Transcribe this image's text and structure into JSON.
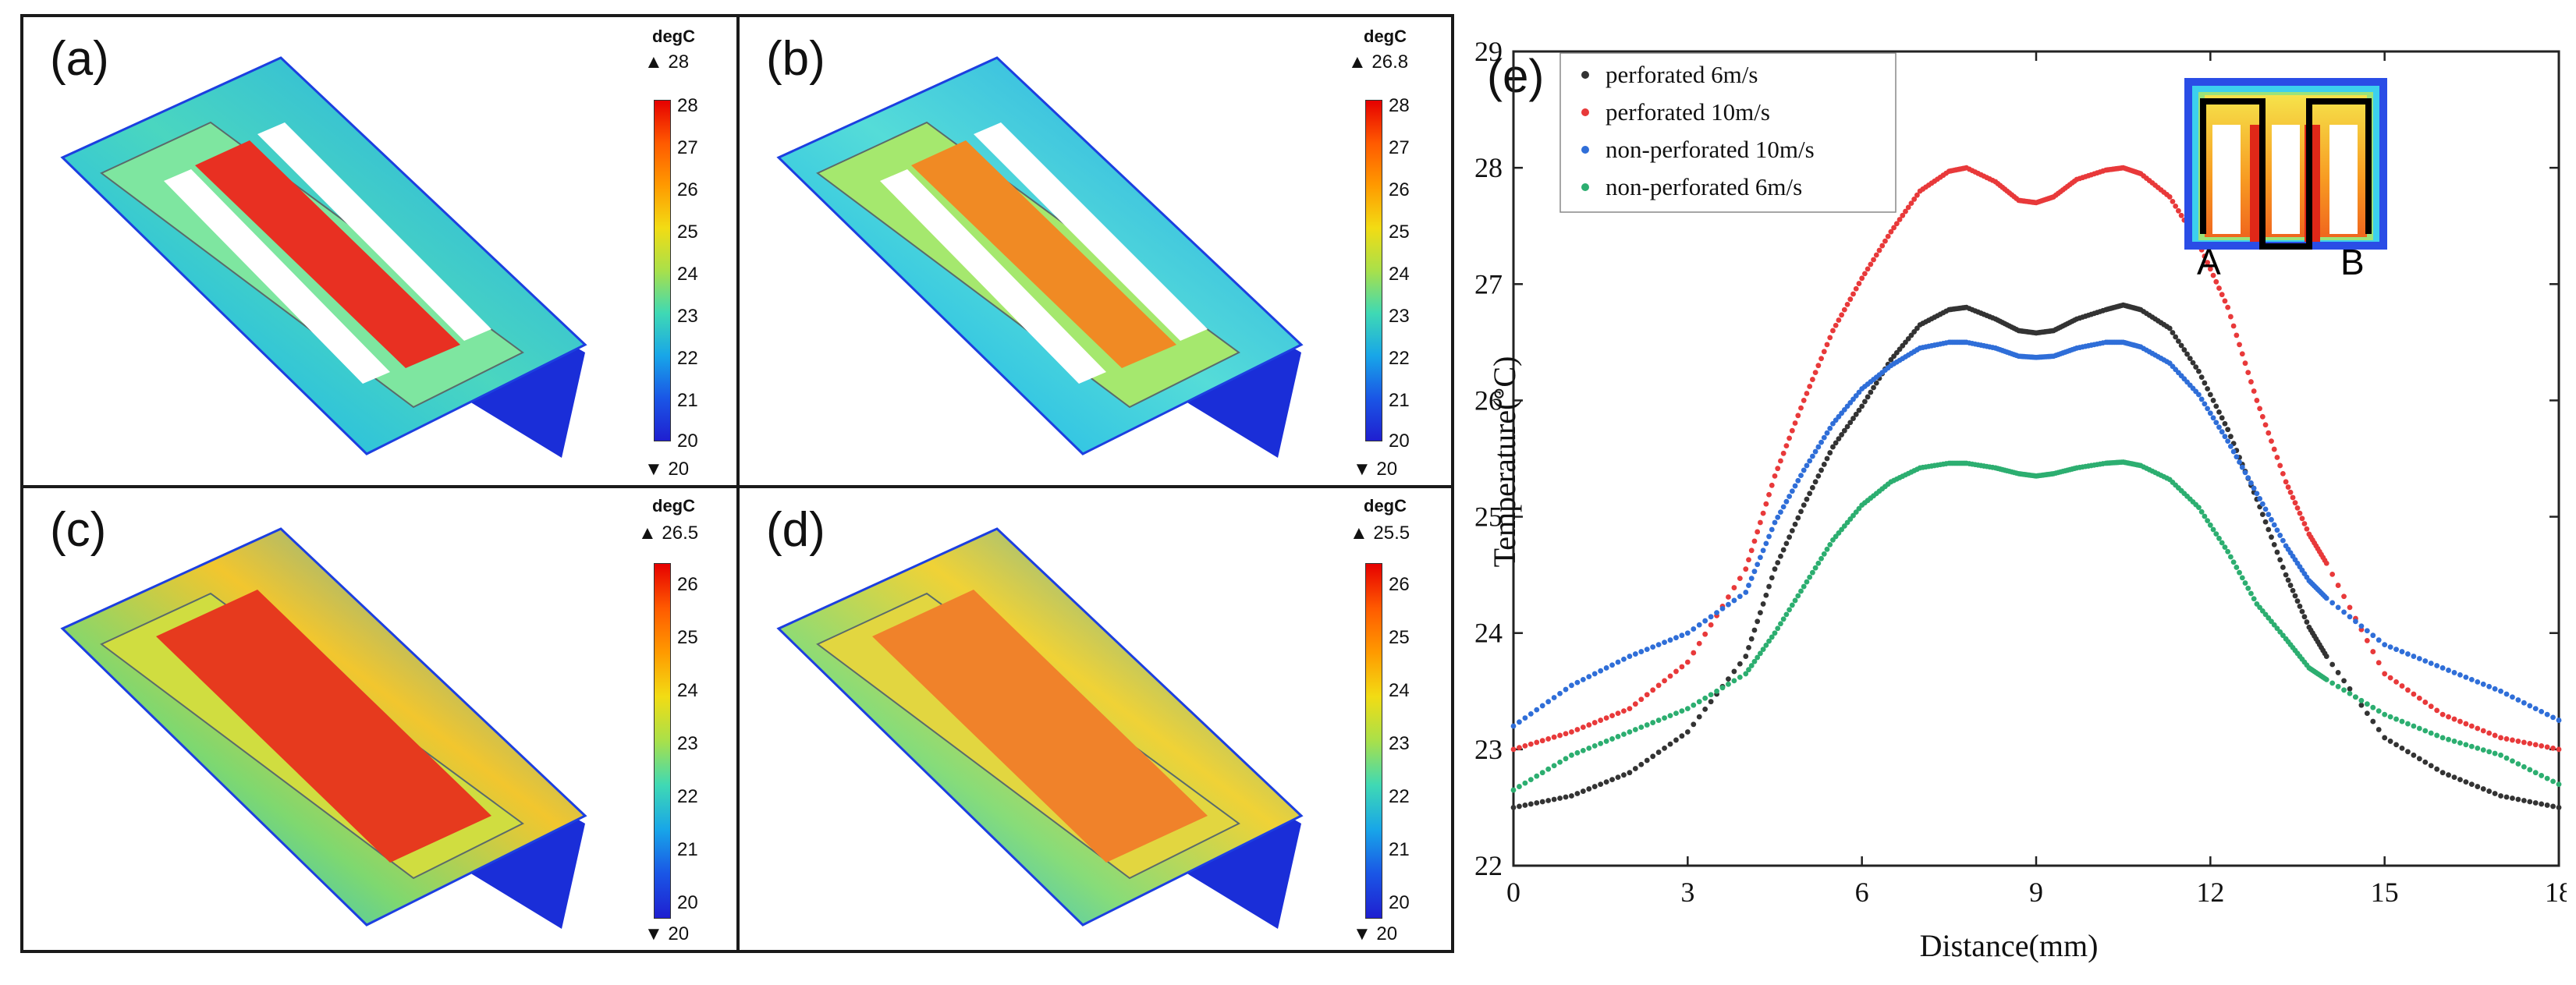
{
  "panels": [
    {
      "label": "(a)",
      "unit": "degC",
      "max_label": "▲ 28",
      "min_label": "▼ 20",
      "ticks": [
        "28",
        "27",
        "26",
        "25",
        "24",
        "23",
        "22",
        "21",
        "20"
      ],
      "state": "perforated_hot"
    },
    {
      "label": "(b)",
      "unit": "degC",
      "max_label": "▲ 26.8",
      "min_label": "▼ 20",
      "ticks": [
        "28",
        "27",
        "26",
        "25",
        "24",
        "23",
        "22",
        "21",
        "20"
      ],
      "state": "perforated_warm"
    },
    {
      "label": "(c)",
      "unit": "degC",
      "max_label": "▲ 26.5",
      "min_label": "▼ 20",
      "ticks": [
        "26",
        "25",
        "24",
        "23",
        "22",
        "21",
        "20"
      ],
      "state": "solid_hot"
    },
    {
      "label": "(d)",
      "unit": "degC",
      "max_label": "▲ 25.5",
      "min_label": "▼ 20",
      "ticks": [
        "26",
        "25",
        "24",
        "23",
        "22",
        "21",
        "20"
      ],
      "state": "solid_warm"
    }
  ],
  "chart_data": {
    "type": "scatter",
    "panel_label": "(e)",
    "xlabel": "Distance(mm)",
    "ylabel": "Temperature(°C)",
    "xlim": [
      0,
      18
    ],
    "ylim": [
      22,
      29
    ],
    "xticks": [
      "0",
      "3",
      "6",
      "9",
      "12",
      "15",
      "18"
    ],
    "yticks": [
      "22",
      "23",
      "24",
      "25",
      "26",
      "27",
      "28",
      "29"
    ],
    "legend_position": "top-left",
    "x": [
      0,
      1,
      2,
      3,
      4,
      4.5,
      5,
      5.5,
      6,
      6.5,
      7,
      7.5,
      7.8,
      8.3,
      8.7,
      9,
      9.3,
      9.7,
      10.2,
      10.5,
      10.8,
      11.3,
      11.8,
      12.3,
      12.8,
      13.3,
      13.7,
      14,
      15,
      16,
      17,
      18
    ],
    "series": [
      {
        "name": "perforated  6m/s",
        "color": "#333333",
        "values": [
          22.5,
          22.6,
          22.8,
          23.15,
          23.8,
          24.55,
          25.1,
          25.6,
          25.95,
          26.35,
          26.65,
          26.78,
          26.8,
          26.7,
          26.6,
          26.58,
          26.6,
          26.7,
          26.78,
          26.82,
          26.78,
          26.62,
          26.25,
          25.75,
          25.15,
          24.5,
          24.05,
          23.8,
          23.1,
          22.8,
          22.6,
          22.5
        ]
      },
      {
        "name": "perforated  10m/s",
        "color": "#e8393a",
        "values": [
          23.0,
          23.15,
          23.35,
          23.75,
          24.55,
          25.35,
          26.0,
          26.6,
          27.05,
          27.45,
          27.8,
          27.97,
          28.0,
          27.88,
          27.72,
          27.7,
          27.75,
          27.9,
          27.98,
          28.0,
          27.95,
          27.75,
          27.35,
          26.8,
          26.0,
          25.3,
          24.85,
          24.6,
          23.65,
          23.3,
          23.1,
          23.0
        ]
      },
      {
        "name": "non-perforated  10m/s",
        "color": "#2f6ed8",
        "values": [
          23.2,
          23.55,
          23.8,
          24.0,
          24.35,
          24.95,
          25.4,
          25.8,
          26.1,
          26.3,
          26.45,
          26.5,
          26.5,
          26.45,
          26.38,
          26.37,
          26.38,
          26.45,
          26.5,
          26.5,
          26.46,
          26.32,
          26.05,
          25.65,
          25.2,
          24.75,
          24.45,
          24.3,
          23.9,
          23.7,
          23.5,
          23.25
        ]
      },
      {
        "name": "non-perforated  6m/s",
        "color": "#2cae70",
        "values": [
          22.65,
          22.95,
          23.15,
          23.35,
          23.65,
          24.0,
          24.4,
          24.8,
          25.1,
          25.3,
          25.42,
          25.46,
          25.46,
          25.42,
          25.37,
          25.35,
          25.37,
          25.42,
          25.46,
          25.47,
          25.44,
          25.32,
          25.08,
          24.7,
          24.25,
          23.95,
          23.7,
          23.6,
          23.3,
          23.1,
          22.95,
          22.7
        ]
      }
    ],
    "inset": {
      "label_a": "A",
      "label_b": "B"
    }
  }
}
